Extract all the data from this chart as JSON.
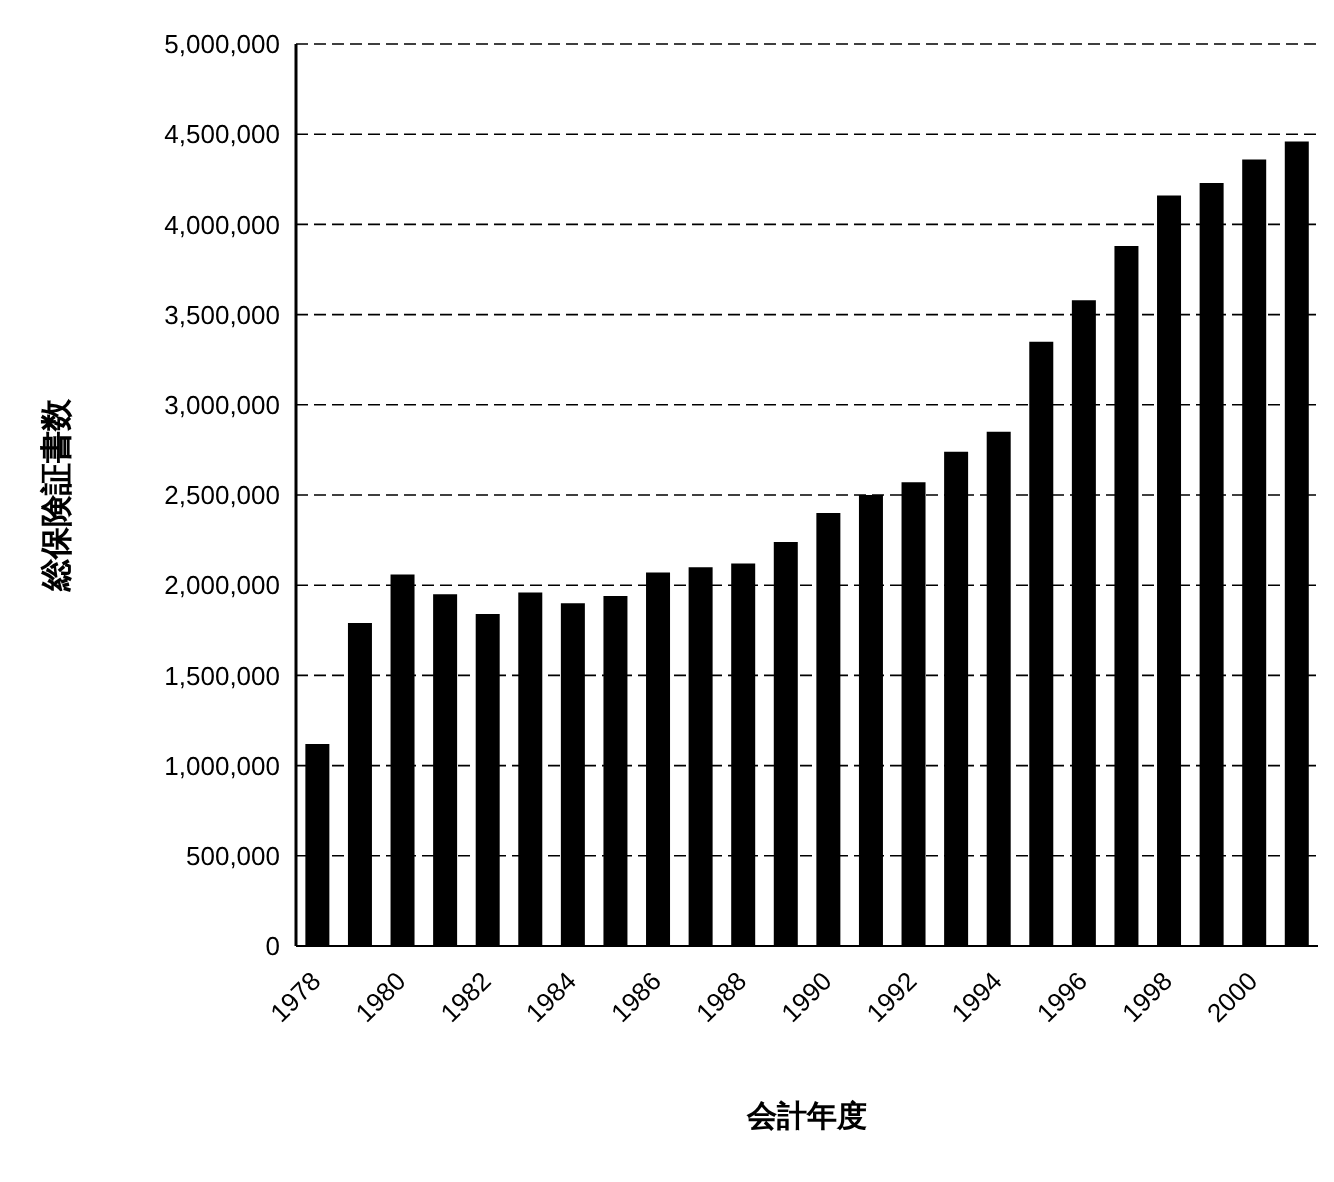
{
  "chart_data": {
    "type": "bar",
    "xlabel": "会計年度",
    "ylabel": "総保険証書数",
    "categories": [
      "1978",
      null,
      "1980",
      null,
      "1982",
      null,
      "1984",
      null,
      "1986",
      null,
      "1988",
      null,
      "1990",
      null,
      "1992",
      null,
      "1994",
      null,
      "1996",
      null,
      "1998",
      null,
      "2000",
      null
    ],
    "series": [
      {
        "color": "#000000",
        "values": [
          1120000,
          1790000,
          2060000,
          1950000,
          1840000,
          1960000,
          1900000,
          1940000,
          2070000,
          2100000,
          2120000,
          2240000,
          2400000,
          2500000,
          2570000,
          2740000,
          2850000,
          3350000,
          3580000,
          3880000,
          4160000,
          4230000,
          4360000,
          4460000
        ]
      }
    ],
    "ylim": [
      0,
      5000000
    ],
    "yticks": [
      0,
      {
        "value": 500000,
        "label": "500,000"
      },
      {
        "value": 1000000,
        "label": "1,000,000"
      },
      {
        "value": 1500000,
        "label": "1,500,000"
      },
      {
        "value": 2000000,
        "label": "2,000,000"
      },
      {
        "value": 2500000,
        "label": "2,500,000"
      },
      {
        "value": 3000000,
        "label": "3,000,000"
      },
      {
        "value": 3500000,
        "label": "3,500,000"
      },
      {
        "value": 4000000,
        "label": "4,000,000"
      },
      {
        "value": 4500000,
        "label": "4,500,000"
      },
      {
        "value": 5000000,
        "label": "5,000,000"
      }
    ],
    "grid": "y",
    "legend": false
  }
}
